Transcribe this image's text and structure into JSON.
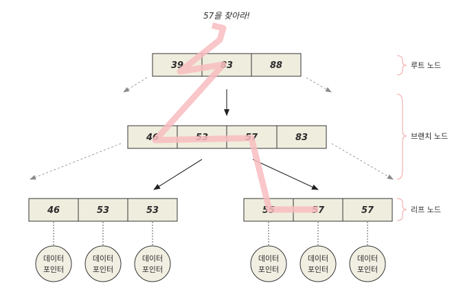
{
  "title": "57을 찾아라!",
  "levels": {
    "root": {
      "label": "루트 노드",
      "keys": [
        "39",
        "83",
        "88"
      ]
    },
    "branch": {
      "label": "브랜치 노드",
      "keys": [
        "46",
        "53",
        "57",
        "83"
      ]
    },
    "leaf": {
      "label": "리프 노드",
      "nodes": [
        {
          "keys": [
            "46",
            "53",
            "53"
          ]
        },
        {
          "keys": [
            "55",
            "57",
            "57"
          ]
        }
      ],
      "pointer_label_line1": "데이터",
      "pointer_label_line2": "포인터"
    }
  },
  "colors": {
    "cell_fill": "#efedde",
    "search_path": "#f8bcbf",
    "brace": "#f4b6b6"
  }
}
